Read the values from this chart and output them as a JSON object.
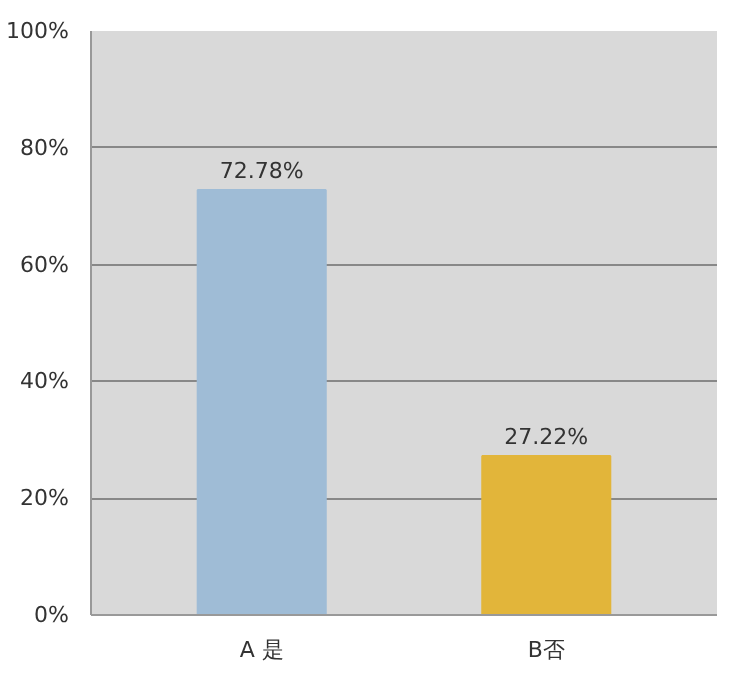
{
  "chart_data": {
    "type": "bar",
    "categories": [
      "A 是",
      "B否"
    ],
    "values": [
      72.78,
      27.22
    ],
    "colors": [
      "#9fbcd6",
      "#e2b53a"
    ],
    "value_labels": [
      "72.78%",
      "27.22%"
    ],
    "ylim": [
      0,
      100
    ],
    "yticks": [
      {
        "value": 0,
        "label": "0%"
      },
      {
        "value": 20,
        "label": "20%"
      },
      {
        "value": 40,
        "label": "40%"
      },
      {
        "value": 60,
        "label": "60%"
      },
      {
        "value": 80,
        "label": "80%"
      },
      {
        "value": 100,
        "label": "100%"
      }
    ],
    "grid": "y"
  }
}
